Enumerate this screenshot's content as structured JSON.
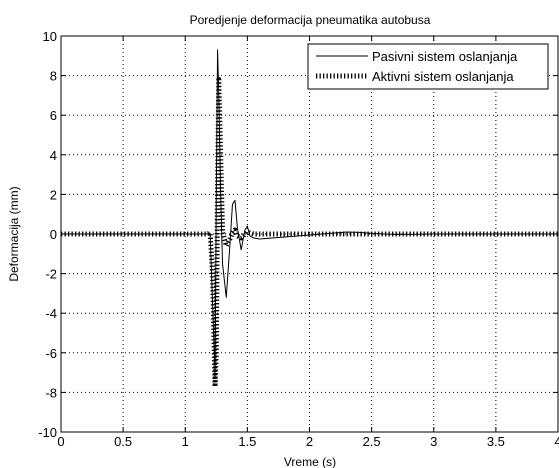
{
  "chart_data": {
    "type": "line",
    "title": "Poredjenje deformacija pneumatika autobusa",
    "xlabel": "Vreme (s)",
    "ylabel": "Deformacija (mm)",
    "xlim": [
      0,
      4
    ],
    "ylim": [
      -10,
      10
    ],
    "x_ticks": [
      0,
      0.5,
      1,
      1.5,
      2,
      2.5,
      3,
      3.5,
      4
    ],
    "x_tick_labels": [
      "0",
      "0.5",
      "1",
      "1.5",
      "2",
      "2.5",
      "3",
      "3.5",
      "4"
    ],
    "y_ticks": [
      -10,
      -8,
      -6,
      -4,
      -2,
      0,
      2,
      4,
      6,
      8,
      10
    ],
    "y_tick_labels": [
      "-10",
      "-8",
      "-6",
      "-4",
      "-2",
      "0",
      "2",
      "4",
      "6",
      "8",
      "10"
    ],
    "grid": true,
    "legend_position": "top-right",
    "series": [
      {
        "name": "Pasivni sistem oslanjanja",
        "style": "solid",
        "color": "#000000",
        "x": [
          0,
          1.18,
          1.2,
          1.22,
          1.24,
          1.25,
          1.26,
          1.27,
          1.285,
          1.3,
          1.33,
          1.36,
          1.38,
          1.4,
          1.42,
          1.45,
          1.48,
          1.5,
          1.52,
          1.55,
          1.6,
          1.7,
          1.8,
          1.9,
          2.0,
          2.1,
          2.2,
          2.3,
          2.4,
          2.5,
          2.6,
          2.7,
          2.8,
          3.0,
          3.2,
          3.4,
          3.6,
          3.8,
          4.0
        ],
        "y": [
          0,
          0,
          0.05,
          -3.5,
          -7.2,
          2.0,
          9.3,
          7.0,
          2.0,
          -1.5,
          -3.2,
          -0.5,
          1.5,
          1.7,
          0.3,
          -0.8,
          0.2,
          0.4,
          -0.1,
          -0.2,
          -0.25,
          -0.2,
          -0.15,
          -0.1,
          -0.05,
          0.0,
          0.05,
          0.1,
          0.08,
          0.03,
          0.0,
          -0.02,
          -0.02,
          0.0,
          0.0,
          0.0,
          0.0,
          0.0,
          0.0
        ]
      },
      {
        "name": "Aktivni sistem oslanjanja",
        "style": "dotted-heavy",
        "color": "#000000",
        "x": [
          0,
          1.18,
          1.2,
          1.22,
          1.24,
          1.25,
          1.26,
          1.27,
          1.285,
          1.3,
          1.33,
          1.36,
          1.38,
          1.4,
          1.42,
          1.45,
          1.5,
          1.55,
          1.6,
          1.8,
          2.0,
          2.5,
          3.0,
          3.5,
          4.0
        ],
        "y": [
          0,
          0,
          0.05,
          -2.0,
          -7.7,
          -6.0,
          2.5,
          7.8,
          4.0,
          0.1,
          -0.6,
          -0.25,
          0.05,
          0.2,
          -0.1,
          -0.2,
          0.1,
          0.0,
          0.0,
          0.0,
          0.0,
          0.0,
          0.0,
          0.0,
          0.0
        ]
      }
    ]
  }
}
